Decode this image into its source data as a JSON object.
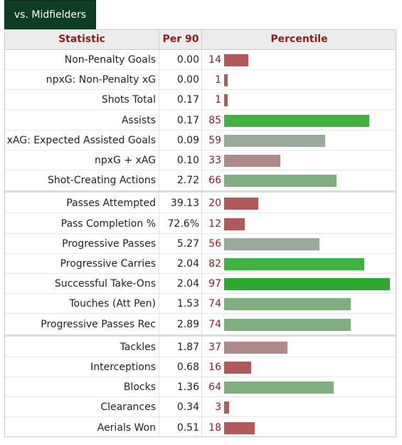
{
  "tab": {
    "label": "vs. Midfielders"
  },
  "header": {
    "statistic": "Statistic",
    "per90": "Per 90",
    "percentile": "Percentile"
  },
  "colors": {
    "low": "#b05a5a",
    "lowMid": "#b08a8a",
    "mid": "#9aaa9a",
    "midHigh": "#7fae7f",
    "high": "#44b044",
    "top": "#2fa82f"
  },
  "groups": [
    {
      "rows": [
        {
          "stat": "Non-Penalty Goals",
          "per90": "0.00",
          "pct": 14
        },
        {
          "stat": "npxG: Non-Penalty xG",
          "per90": "0.00",
          "pct": 1
        },
        {
          "stat": "Shots Total",
          "per90": "0.17",
          "pct": 1
        },
        {
          "stat": "Assists",
          "per90": "0.17",
          "pct": 85
        },
        {
          "stat": "xAG: Expected Assisted Goals",
          "per90": "0.09",
          "pct": 59
        },
        {
          "stat": "npxG + xAG",
          "per90": "0.10",
          "pct": 33
        },
        {
          "stat": "Shot-Creating Actions",
          "per90": "2.72",
          "pct": 66
        }
      ]
    },
    {
      "rows": [
        {
          "stat": "Passes Attempted",
          "per90": "39.13",
          "pct": 20
        },
        {
          "stat": "Pass Completion %",
          "per90": "72.6%",
          "pct": 12
        },
        {
          "stat": "Progressive Passes",
          "per90": "5.27",
          "pct": 56
        },
        {
          "stat": "Progressive Carries",
          "per90": "2.04",
          "pct": 82
        },
        {
          "stat": "Successful Take-Ons",
          "per90": "2.04",
          "pct": 97
        },
        {
          "stat": "Touches (Att Pen)",
          "per90": "1.53",
          "pct": 74
        },
        {
          "stat": "Progressive Passes Rec",
          "per90": "2.89",
          "pct": 74
        }
      ]
    },
    {
      "rows": [
        {
          "stat": "Tackles",
          "per90": "1.87",
          "pct": 37
        },
        {
          "stat": "Interceptions",
          "per90": "0.68",
          "pct": 16
        },
        {
          "stat": "Blocks",
          "per90": "1.36",
          "pct": 64
        },
        {
          "stat": "Clearances",
          "per90": "0.34",
          "pct": 3
        },
        {
          "stat": "Aerials Won",
          "per90": "0.51",
          "pct": 18
        }
      ]
    }
  ]
}
